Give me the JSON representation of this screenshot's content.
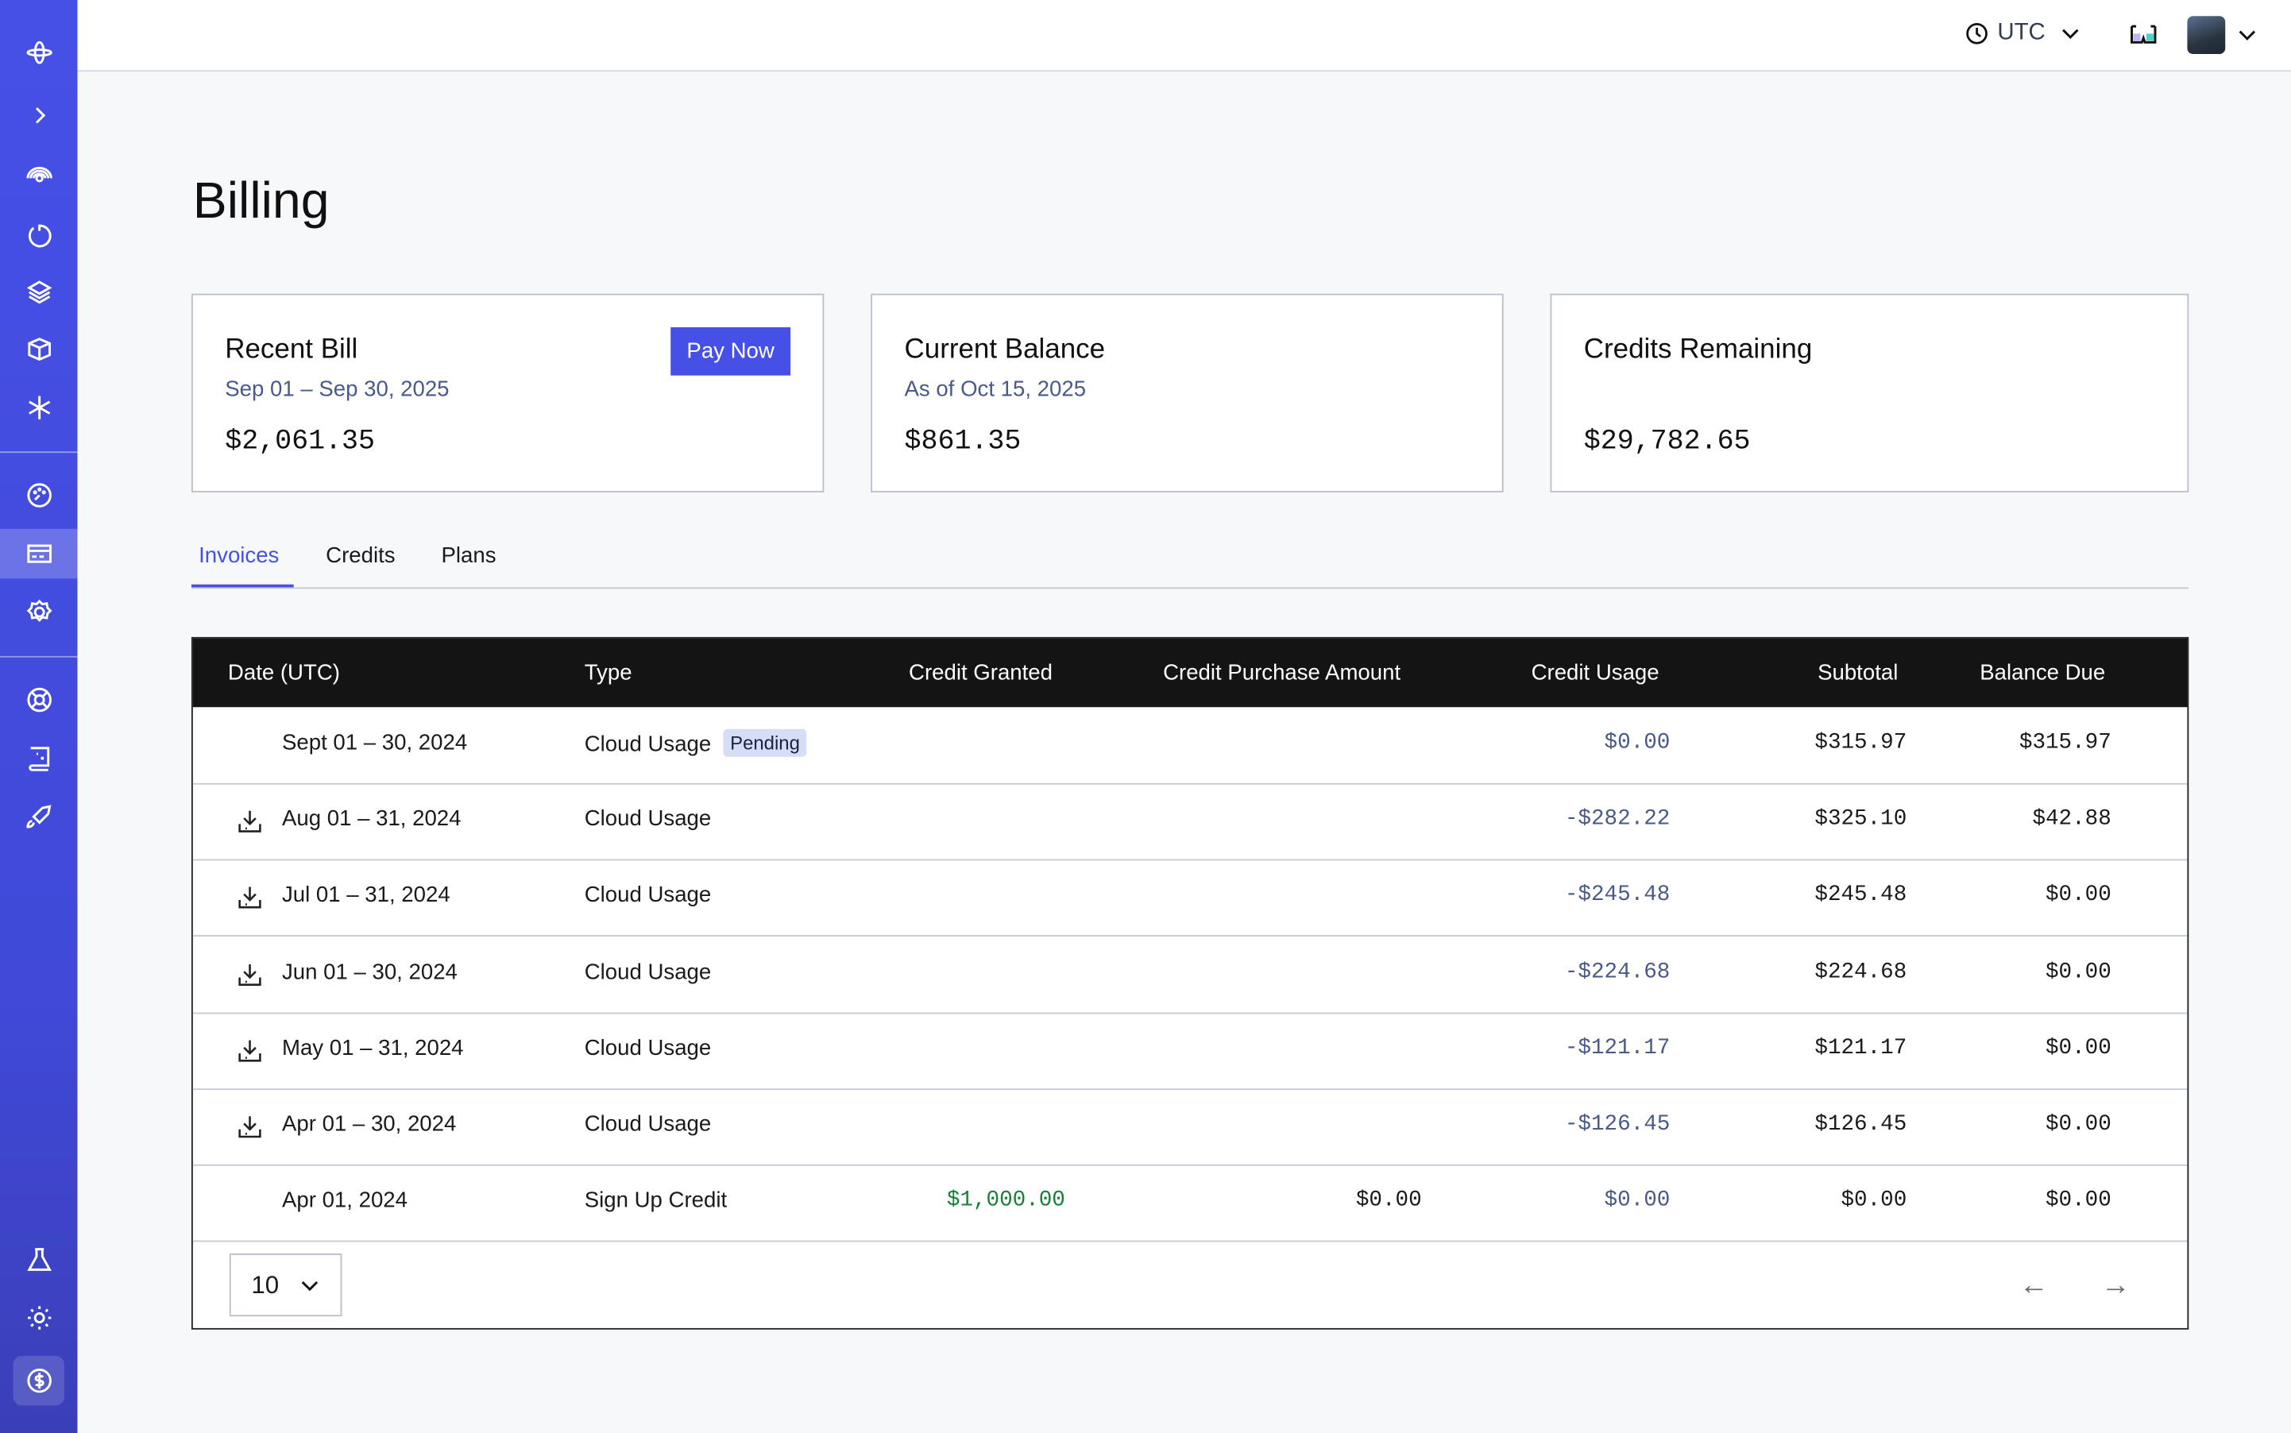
{
  "topbar": {
    "timezone": "UTC",
    "icons": [
      "clock-icon",
      "3d-glasses-icon",
      "avatar",
      "chevron-down-icon"
    ]
  },
  "sidebar": {
    "items": [
      "orbit",
      "expand",
      "radar",
      "history",
      "layers",
      "cube",
      "asterisk",
      "dashboard",
      "billing",
      "settings",
      "support",
      "guide",
      "launch",
      "lab",
      "theme",
      "credits"
    ],
    "active": "billing",
    "accent": "#4650e6"
  },
  "page": {
    "title": "Billing"
  },
  "cards": [
    {
      "title": "Recent Bill",
      "subtitle": "Sep 01 – Sep 30, 2025",
      "value": "$2,061.35",
      "button": "Pay Now"
    },
    {
      "title": "Current Balance",
      "subtitle": "As of Oct 15, 2025",
      "value": "$861.35"
    },
    {
      "title": "Credits Remaining",
      "subtitle": "",
      "value": "$29,782.65"
    }
  ],
  "tabs": [
    {
      "label": "Invoices",
      "active": true
    },
    {
      "label": "Credits"
    },
    {
      "label": "Plans"
    }
  ],
  "table": {
    "headers": [
      "Date (UTC)",
      "Type",
      "Credit Granted",
      "Credit Purchase Amount",
      "Credit Usage",
      "Subtotal",
      "Balance Due"
    ],
    "rows": [
      {
        "date": "Sept 01 – 30, 2024",
        "type": "Cloud Usage",
        "badge": "Pending",
        "granted": "",
        "purchase": "",
        "usage": "$0.00",
        "subtotal": "$315.97",
        "due": "$315.97",
        "download": false
      },
      {
        "date": "Aug 01 – 31, 2024",
        "type": "Cloud Usage",
        "granted": "",
        "purchase": "",
        "usage": "-$282.22",
        "subtotal": "$325.10",
        "due": "$42.88",
        "download": true
      },
      {
        "date": "Jul 01 – 31, 2024",
        "type": "Cloud Usage",
        "granted": "",
        "purchase": "",
        "usage": "-$245.48",
        "subtotal": "$245.48",
        "due": "$0.00",
        "download": true
      },
      {
        "date": "Jun 01 – 30, 2024",
        "type": "Cloud Usage",
        "granted": "",
        "purchase": "",
        "usage": "-$224.68",
        "subtotal": "$224.68",
        "due": "$0.00",
        "download": true
      },
      {
        "date": "May 01 – 31, 2024",
        "type": "Cloud Usage",
        "granted": "",
        "purchase": "",
        "usage": "-$121.17",
        "subtotal": "$121.17",
        "due": "$0.00",
        "download": true
      },
      {
        "date": "Apr 01 – 30, 2024",
        "type": "Cloud Usage",
        "granted": "",
        "purchase": "",
        "usage": "-$126.45",
        "subtotal": "$126.45",
        "due": "$0.00",
        "download": true
      },
      {
        "date": "Apr 01, 2024",
        "type": "Sign Up Credit",
        "granted": "$1,000.00",
        "purchase": "$0.00",
        "usage": "$0.00",
        "subtotal": "$0.00",
        "due": "$0.00",
        "download": false
      }
    ],
    "page_size": "10"
  }
}
